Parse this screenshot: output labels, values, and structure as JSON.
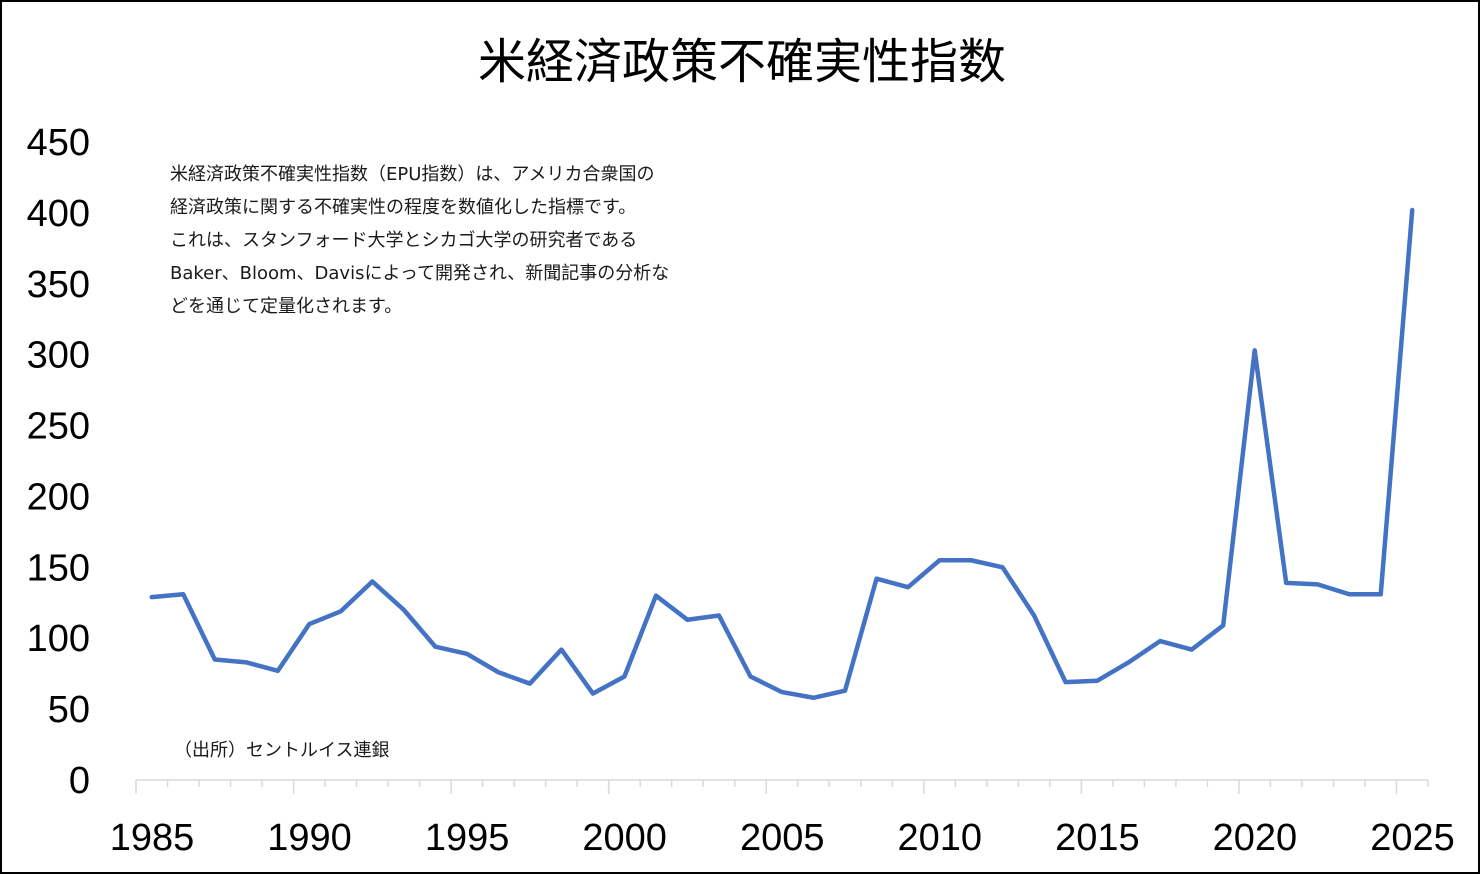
{
  "chart_data": {
    "type": "line",
    "title": "米経済政策不確実性指数",
    "xlabel": "",
    "ylabel": "",
    "x": [
      1985,
      1986,
      1987,
      1988,
      1989,
      1990,
      1991,
      1992,
      1993,
      1994,
      1995,
      1996,
      1997,
      1998,
      1999,
      2000,
      2001,
      2002,
      2003,
      2004,
      2005,
      2006,
      2007,
      2008,
      2009,
      2010,
      2011,
      2012,
      2013,
      2014,
      2015,
      2016,
      2017,
      2018,
      2019,
      2020,
      2021,
      2022,
      2023,
      2024,
      2025
    ],
    "series": [
      {
        "name": "",
        "values": [
          129,
          131,
          85,
          83,
          77,
          110,
          119,
          140,
          120,
          94,
          89,
          76,
          68,
          92,
          61,
          73,
          130,
          113,
          116,
          73,
          62,
          58,
          63,
          142,
          136,
          155,
          155,
          150,
          116,
          69,
          70,
          83,
          98,
          92,
          109,
          303,
          139,
          138,
          131,
          131,
          402
        ]
      }
    ],
    "xlim": [
      1984.5,
      2025.5
    ],
    "ylim": [
      0,
      450
    ],
    "x_ticks": [
      "1985",
      "1990",
      "1995",
      "2000",
      "2005",
      "2010",
      "2015",
      "2020",
      "2025"
    ],
    "y_ticks": [
      "0",
      "50",
      "100",
      "150",
      "200",
      "250",
      "300",
      "350",
      "400",
      "450"
    ],
    "grid": false,
    "legend": "none",
    "line_color": "#4472c4",
    "note_lines": [
      "米経済政策不確実性指数（EPU指数）は、アメリカ合衆国の",
      "経済政策に関する不確実性の程度を数値化した指標です。",
      "これは、スタンフォード大学とシカゴ大学の研究者である",
      "Baker、Bloom、Davisによって開発され、新聞記事の分析な",
      "どを通じて定量化されます。"
    ],
    "source": "（出所）セントルイス連銀"
  }
}
